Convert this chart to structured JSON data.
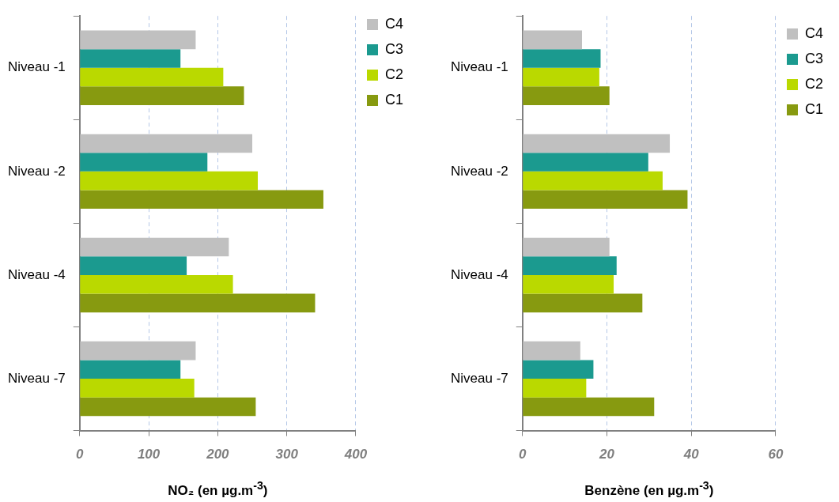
{
  "chart_data": [
    {
      "type": "bar",
      "orientation": "horizontal",
      "categories": [
        "Niveau -1",
        "Niveau -2",
        "Niveau -4",
        "Niveau -7"
      ],
      "xlabel": "NO₂ (en µg.m$^{-3}$)",
      "xlim": [
        0,
        400
      ],
      "xticks": [
        0,
        100,
        200,
        300,
        400
      ],
      "grid": "x",
      "legend": "top right",
      "series": [
        {
          "name": "C4",
          "color": "#c0c0c0",
          "values": [
            168,
            250,
            216,
            168
          ]
        },
        {
          "name": "C3",
          "color": "#1b9a8f",
          "values": [
            146,
            185,
            155,
            146
          ]
        },
        {
          "name": "C2",
          "color": "#bad900",
          "values": [
            208,
            258,
            222,
            166
          ]
        },
        {
          "name": "C1",
          "color": "#879a10",
          "values": [
            238,
            353,
            341,
            255
          ]
        }
      ]
    },
    {
      "type": "bar",
      "orientation": "horizontal",
      "categories": [
        "Niveau -1",
        "Niveau -2",
        "Niveau -4",
        "Niveau -7"
      ],
      "xlabel": "Benzène (en µg.m$^{-3}$)",
      "xlim": [
        0,
        60
      ],
      "xticks": [
        0,
        20,
        40,
        60
      ],
      "grid": "x",
      "legend": "top right",
      "series": [
        {
          "name": "C4",
          "color": "#c0c0c0",
          "values": [
            14.1,
            34.9,
            20.6,
            13.7
          ]
        },
        {
          "name": "C3",
          "color": "#1b9a8f",
          "values": [
            18.5,
            29.8,
            22.3,
            16.8
          ]
        },
        {
          "name": "C2",
          "color": "#bad900",
          "values": [
            18.2,
            33.2,
            21.6,
            15.1
          ]
        },
        {
          "name": "C1",
          "color": "#879a10",
          "values": [
            20.6,
            39.1,
            28.4,
            31.2
          ]
        }
      ]
    }
  ]
}
